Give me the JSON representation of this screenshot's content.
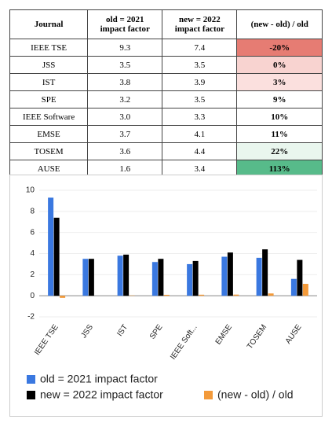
{
  "table": {
    "header": [
      "Journal",
      "old = 2021\nimpact factor",
      "new = 2022\nimpact factor",
      "(new - old) / old"
    ],
    "rows": [
      [
        "IEEE TSE",
        "9.3",
        "7.4",
        "-20%"
      ],
      [
        "JSS",
        "3.5",
        "3.5",
        "0%"
      ],
      [
        "IST",
        "3.8",
        "3.9",
        "3%"
      ],
      [
        "SPE",
        "3.2",
        "3.5",
        "9%"
      ],
      [
        "IEEE Software",
        "3.0",
        "3.3",
        "10%"
      ],
      [
        "EMSE",
        "3.7",
        "4.1",
        "11%"
      ],
      [
        "TOSEM",
        "3.6",
        "4.4",
        "22%"
      ],
      [
        "AUSE",
        "1.6",
        "3.4",
        "113%"
      ]
    ]
  },
  "chart_data": {
    "type": "bar",
    "categories": [
      "IEEE TSE",
      "JSS",
      "IST",
      "SPE",
      "IEEE Soft...",
      "EMSE",
      "TOSEM",
      "AUSE"
    ],
    "series": [
      {
        "name": "old = 2021 impact factor",
        "color": "#3a78e0",
        "values": [
          9.3,
          3.5,
          3.8,
          3.2,
          3.0,
          3.7,
          3.6,
          1.6
        ]
      },
      {
        "name": "new = 2022 impact factor",
        "color": "#000000",
        "values": [
          7.4,
          3.5,
          3.9,
          3.5,
          3.3,
          4.1,
          4.4,
          3.4
        ]
      },
      {
        "name": "(new - old) / old",
        "color": "#f39a3a",
        "values": [
          -0.2,
          0,
          0.03,
          0.09,
          0.1,
          0.11,
          0.22,
          1.13
        ]
      }
    ],
    "ylim": [
      -2,
      10
    ],
    "yticks": [
      -2,
      0,
      2,
      4,
      6,
      8,
      10
    ],
    "grid": true
  }
}
